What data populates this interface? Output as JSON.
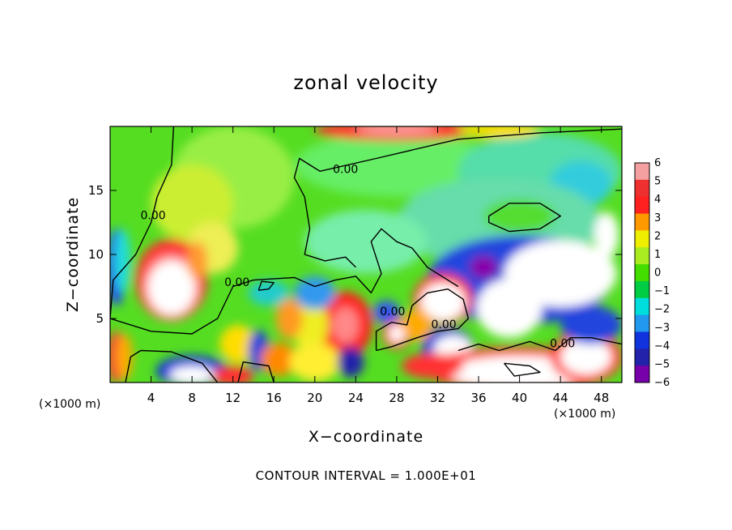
{
  "chart_data": {
    "type": "heatmap",
    "title": "zonal velocity",
    "xlabel": "X−coordinate",
    "ylabel": "Z−coordinate",
    "x_unit_label": "(×1000 m)",
    "footer": "CONTOUR INTERVAL = 1.000E+01",
    "xlim": [
      0,
      50
    ],
    "ylim": [
      0,
      20
    ],
    "x_ticks": [
      4,
      8,
      12,
      16,
      20,
      24,
      28,
      32,
      36,
      40,
      44,
      48
    ],
    "y_ticks": [
      5,
      10,
      15
    ],
    "colorbar": {
      "levels": [
        6,
        5,
        4,
        3,
        2,
        1,
        0,
        -1,
        -2,
        -3,
        -4,
        -5,
        -6
      ],
      "labels": [
        "6",
        "5",
        "4",
        "3",
        "2",
        "1",
        "0",
        "−1",
        "−2",
        "−3",
        "−4",
        "−5",
        "−6"
      ],
      "colors": [
        "#f4a0a0",
        "#ee3030",
        "#ff2020",
        "#ff9900",
        "#eeee00",
        "#aaee22",
        "#44dd00",
        "#00cc44",
        "#00dddd",
        "#2299ee",
        "#1133dd",
        "#2222aa",
        "#7700aa"
      ]
    },
    "contour_labels": [
      {
        "text": "0.00",
        "x": 23.0,
        "z": 16.6
      },
      {
        "text": "0.00",
        "x": 4.2,
        "z": 13.0
      },
      {
        "text": "0.00",
        "x": 12.4,
        "z": 7.8
      },
      {
        "text": "0.00",
        "x": 27.6,
        "z": 5.5
      },
      {
        "text": "0.00",
        "x": 32.6,
        "z": 4.5
      },
      {
        "text": "0.00",
        "x": 44.2,
        "z": 3.0
      }
    ],
    "background_color": "#55dd22",
    "blobs": [
      {
        "x": 12.0,
        "z": 16.0,
        "rx": 6.0,
        "rz": 4.0,
        "c": "#99ee44"
      },
      {
        "x": 8.0,
        "z": 14.0,
        "rx": 4.0,
        "rz": 3.0,
        "c": "#ccee33"
      },
      {
        "x": 10.0,
        "z": 10.5,
        "rx": 2.5,
        "rz": 2.0,
        "c": "#eeee55"
      },
      {
        "x": 28.0,
        "z": 17.0,
        "rx": 10.0,
        "rz": 2.5,
        "c": "#66ee66"
      },
      {
        "x": 42.0,
        "z": 16.5,
        "rx": 8.0,
        "rz": 3.0,
        "c": "#55ddaa"
      },
      {
        "x": 46.0,
        "z": 15.5,
        "rx": 3.0,
        "rz": 1.8,
        "c": "#33ccdd"
      },
      {
        "x": 38.0,
        "z": 12.5,
        "rx": 10.0,
        "rz": 3.5,
        "c": "#66ddaa"
      },
      {
        "x": 40.0,
        "z": 13.0,
        "rx": 3.5,
        "rz": 1.3,
        "c": "#55dd33"
      },
      {
        "x": 25.0,
        "z": 11.0,
        "rx": 6.0,
        "rz": 2.5,
        "c": "#77eeaa"
      },
      {
        "x": 40.0,
        "z": 8.0,
        "rx": 9.0,
        "rz": 3.5,
        "c": "#2244dd"
      },
      {
        "x": 44.0,
        "z": 8.5,
        "rx": 5.5,
        "rz": 2.6,
        "c": "#ffffff"
      },
      {
        "x": 39.0,
        "z": 5.8,
        "rx": 3.2,
        "rz": 2.3,
        "c": "#ffffff"
      },
      {
        "x": 36.5,
        "z": 9.0,
        "rx": 1.4,
        "rz": 0.9,
        "c": "#8800aa"
      },
      {
        "x": 48.5,
        "z": 11.5,
        "rx": 1.2,
        "rz": 1.8,
        "c": "#ffffff"
      },
      {
        "x": 6.0,
        "z": 8.0,
        "rx": 3.5,
        "rz": 3.2,
        "c": "#ff3030"
      },
      {
        "x": 6.0,
        "z": 7.5,
        "rx": 2.8,
        "rz": 2.6,
        "c": "#ff8888"
      },
      {
        "x": 6.0,
        "z": 7.4,
        "rx": 2.3,
        "rz": 2.1,
        "c": "#ffffff"
      },
      {
        "x": 8.5,
        "z": 9.5,
        "rx": 1.0,
        "rz": 1.5,
        "c": "#ff9933"
      },
      {
        "x": 0.6,
        "z": 9.0,
        "rx": 1.0,
        "rz": 3.0,
        "c": "#2244ee"
      },
      {
        "x": 1.2,
        "z": 9.5,
        "rx": 0.8,
        "rz": 2.5,
        "c": "#22dddd"
      },
      {
        "x": 0.6,
        "z": 2.0,
        "rx": 0.9,
        "rz": 2.0,
        "c": "#ff3333"
      },
      {
        "x": 1.4,
        "z": 2.0,
        "rx": 0.8,
        "rz": 1.8,
        "c": "#ffaa00"
      },
      {
        "x": 23.0,
        "z": 4.5,
        "rx": 2.6,
        "rz": 2.6,
        "c": "#ff2222"
      },
      {
        "x": 23.0,
        "z": 4.5,
        "rx": 1.3,
        "rz": 1.4,
        "c": "#ff8888"
      },
      {
        "x": 19.5,
        "z": 4.5,
        "rx": 1.8,
        "rz": 2.0,
        "c": "#eeee22"
      },
      {
        "x": 17.5,
        "z": 5.0,
        "rx": 1.3,
        "rz": 1.6,
        "c": "#ff9922"
      },
      {
        "x": 28.0,
        "z": 3.8,
        "rx": 1.4,
        "rz": 1.2,
        "c": "#ff2222"
      },
      {
        "x": 28.0,
        "z": 3.8,
        "rx": 0.8,
        "rz": 0.7,
        "c": "#ffffff"
      },
      {
        "x": 27.0,
        "z": 5.5,
        "rx": 1.3,
        "rz": 0.9,
        "c": "#3355ee"
      },
      {
        "x": 32.5,
        "z": 6.5,
        "rx": 2.9,
        "rz": 2.0,
        "c": "#ff3030"
      },
      {
        "x": 32.5,
        "z": 6.3,
        "rx": 2.2,
        "rz": 1.5,
        "c": "#ffffff"
      },
      {
        "x": 33.0,
        "z": 2.8,
        "rx": 2.5,
        "rz": 1.5,
        "c": "#1133dd"
      },
      {
        "x": 33.5,
        "z": 2.6,
        "rx": 1.9,
        "rz": 1.1,
        "c": "#ffffff"
      },
      {
        "x": 30.0,
        "z": 4.5,
        "rx": 1.5,
        "rz": 1.3,
        "c": "#ffaa00"
      },
      {
        "x": 20.0,
        "z": 7.0,
        "rx": 2.0,
        "rz": 1.3,
        "c": "#3399ee"
      },
      {
        "x": 15.5,
        "z": 7.0,
        "rx": 2.0,
        "rz": 1.0,
        "c": "#22cccc"
      },
      {
        "x": 12.5,
        "z": 3.0,
        "rx": 1.8,
        "rz": 1.5,
        "c": "#ffdd00"
      },
      {
        "x": 14.5,
        "z": 2.5,
        "rx": 1.0,
        "rz": 1.6,
        "c": "#2244dd"
      },
      {
        "x": 16.5,
        "z": 1.8,
        "rx": 1.8,
        "rz": 1.3,
        "c": "#ff8800"
      },
      {
        "x": 20.0,
        "z": 1.6,
        "rx": 2.5,
        "rz": 1.5,
        "c": "#ffee33"
      },
      {
        "x": 23.5,
        "z": 1.6,
        "rx": 1.3,
        "rz": 1.2,
        "c": "#2222aa"
      },
      {
        "x": 8.0,
        "z": 0.9,
        "rx": 3.5,
        "rz": 1.2,
        "c": "#1133dd"
      },
      {
        "x": 8.0,
        "z": 0.6,
        "rx": 2.2,
        "rz": 0.7,
        "c": "#ffffff"
      },
      {
        "x": 12.0,
        "z": 0.5,
        "rx": 2.0,
        "rz": 0.8,
        "c": "#ff3333"
      },
      {
        "x": 40.0,
        "z": 1.0,
        "rx": 9.0,
        "rz": 1.8,
        "c": "#ff3333"
      },
      {
        "x": 40.0,
        "z": 0.8,
        "rx": 7.0,
        "rz": 1.3,
        "c": "#ffffff"
      },
      {
        "x": 46.5,
        "z": 2.0,
        "rx": 3.5,
        "rz": 2.0,
        "c": "#ff3333"
      },
      {
        "x": 46.5,
        "z": 2.0,
        "rx": 2.5,
        "rz": 1.4,
        "c": "#ffffff"
      },
      {
        "x": 47.0,
        "z": 4.5,
        "rx": 3.0,
        "rz": 1.5,
        "c": "#2244dd"
      },
      {
        "x": 31.5,
        "z": 1.3,
        "rx": 3.0,
        "rz": 1.0,
        "c": "#ff3333"
      },
      {
        "x": 28.0,
        "z": 19.7,
        "rx": 8.0,
        "rz": 0.8,
        "c": "#ff3333"
      },
      {
        "x": 28.0,
        "z": 19.8,
        "rx": 4.0,
        "rz": 0.5,
        "c": "#ff9999"
      },
      {
        "x": 38.0,
        "z": 19.7,
        "rx": 4.0,
        "rz": 0.6,
        "c": "#ffdd00"
      }
    ],
    "contour_lines": [
      [
        [
          6.2,
          20
        ],
        [
          6.0,
          17.0
        ],
        [
          4.6,
          14.5
        ],
        [
          4.0,
          12.5
        ],
        [
          2.5,
          10.0
        ],
        [
          0.3,
          8.0
        ],
        [
          0.0,
          5.0
        ]
      ],
      [
        [
          0.0,
          5.0
        ],
        [
          4.0,
          4.0
        ],
        [
          8.0,
          3.8
        ],
        [
          10.5,
          5.0
        ],
        [
          12.0,
          7.5
        ],
        [
          14.0,
          8.0
        ],
        [
          18.0,
          8.2
        ],
        [
          20.0,
          7.5
        ],
        [
          22.0,
          8.0
        ],
        [
          24.0,
          8.3
        ],
        [
          25.5,
          7.0
        ],
        [
          26.5,
          8.5
        ],
        [
          25.5,
          11.0
        ],
        [
          26.5,
          12.0
        ],
        [
          28.0,
          11.0
        ],
        [
          29.5,
          10.5
        ],
        [
          31.0,
          9.0
        ],
        [
          34.0,
          7.5
        ]
      ],
      [
        [
          50,
          19.8
        ],
        [
          42.0,
          19.5
        ],
        [
          34.0,
          19.0
        ],
        [
          26.0,
          17.5
        ],
        [
          20.5,
          16.5
        ],
        [
          18.5,
          17.5
        ],
        [
          18.0,
          16.0
        ],
        [
          19.0,
          14.5
        ],
        [
          19.5,
          12.0
        ],
        [
          19.0,
          10.0
        ],
        [
          21.0,
          9.5
        ],
        [
          23.0,
          9.8
        ],
        [
          24.0,
          9.0
        ]
      ],
      [
        [
          37.0,
          13.0
        ],
        [
          39.0,
          14.0
        ],
        [
          42.0,
          14.0
        ],
        [
          44.0,
          13.0
        ],
        [
          42.0,
          12.0
        ],
        [
          39.0,
          11.8
        ],
        [
          37.0,
          12.5
        ],
        [
          37.0,
          13.0
        ]
      ],
      [
        [
          14.5,
          7.2
        ],
        [
          15.5,
          7.3
        ],
        [
          16.0,
          7.8
        ],
        [
          14.8,
          7.9
        ],
        [
          14.5,
          7.2
        ]
      ],
      [
        [
          34.0,
          2.5
        ],
        [
          36.0,
          3.0
        ],
        [
          38.0,
          2.5
        ],
        [
          41.0,
          3.2
        ],
        [
          43.5,
          2.5
        ],
        [
          45.0,
          3.5
        ],
        [
          47.0,
          3.5
        ],
        [
          50.0,
          3.0
        ]
      ],
      [
        [
          1.5,
          0.0
        ],
        [
          2.0,
          2.0
        ],
        [
          3.0,
          2.5
        ],
        [
          6.0,
          2.4
        ],
        [
          9.0,
          1.5
        ],
        [
          10.5,
          0.0
        ]
      ],
      [
        [
          12.5,
          0.0
        ],
        [
          13.0,
          1.6
        ],
        [
          15.5,
          1.3
        ],
        [
          16.0,
          0.0
        ]
      ],
      [
        [
          26.0,
          2.5
        ],
        [
          27.5,
          2.8
        ],
        [
          30.0,
          3.5
        ],
        [
          32.0,
          4.0
        ],
        [
          34.0,
          4.2
        ],
        [
          35.0,
          5.0
        ],
        [
          34.5,
          6.5
        ],
        [
          33.0,
          7.3
        ],
        [
          31.0,
          7.0
        ],
        [
          29.5,
          6.0
        ],
        [
          29.0,
          4.5
        ],
        [
          27.5,
          4.7
        ],
        [
          26.0,
          4.0
        ],
        [
          26.0,
          2.5
        ]
      ],
      [
        [
          38.5,
          1.5
        ],
        [
          41.0,
          1.3
        ],
        [
          42.0,
          0.8
        ],
        [
          39.5,
          0.5
        ],
        [
          38.5,
          1.5
        ]
      ]
    ]
  }
}
